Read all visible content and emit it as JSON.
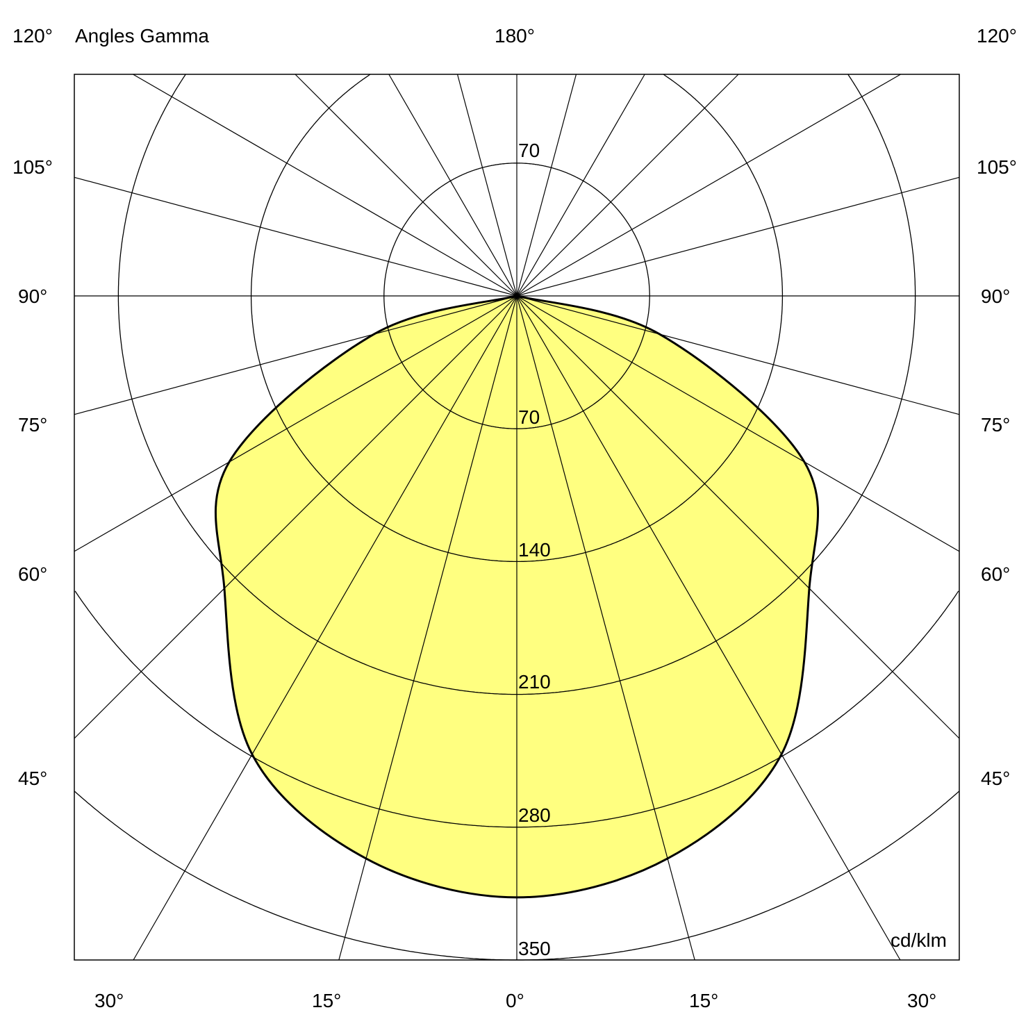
{
  "chart_data": {
    "type": "polar",
    "title": "Angles Gamma",
    "unit_label": "cd/klm",
    "radial_ticks": [
      70,
      140,
      210,
      280,
      350
    ],
    "rmax": 350,
    "angle_step_deg": 15,
    "fill_color": "#FFFF80",
    "grid": true,
    "angle_labels": {
      "top_left": "120°",
      "top_center": "180°",
      "top_right": "120°",
      "left": [
        "105°",
        "90°",
        "75°",
        "60°",
        "45°"
      ],
      "right": [
        "105°",
        "90°",
        "75°",
        "60°",
        "45°"
      ],
      "bottom": [
        "30°",
        "15°",
        "0°",
        "15°",
        "30°"
      ]
    },
    "series": [
      {
        "gamma_deg": [
          0,
          15,
          30,
          45,
          60,
          75,
          90
        ],
        "intensity": [
          317,
          307,
          279,
          218,
          175,
          78,
          0
        ]
      }
    ]
  }
}
